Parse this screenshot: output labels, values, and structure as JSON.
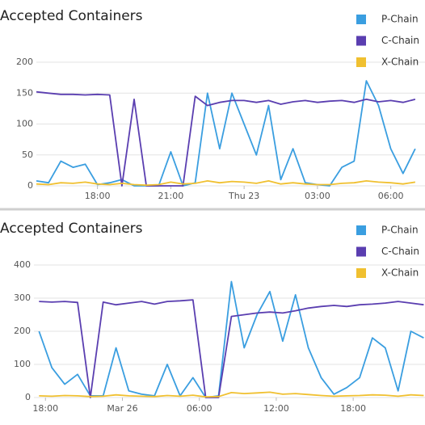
{
  "chart_data": [
    {
      "type": "line",
      "title": "Accepted Containers",
      "x": [
        15.5,
        16,
        16.5,
        17,
        17.5,
        18,
        18.5,
        19,
        19.5,
        20,
        20.5,
        21,
        21.5,
        22,
        22.5,
        23,
        23.5,
        24,
        24.5,
        25,
        25.5,
        26,
        26.5,
        27,
        27.5,
        28,
        28.5,
        29,
        29.5,
        30,
        30.5,
        31
      ],
      "series": [
        {
          "name": "P-Chain",
          "color": "#3a9ee0",
          "values": [
            8,
            5,
            40,
            30,
            35,
            2,
            5,
            10,
            0,
            0,
            0,
            55,
            0,
            5,
            150,
            60,
            150,
            100,
            50,
            130,
            10,
            60,
            5,
            2,
            0,
            30,
            40,
            170,
            130,
            60,
            20,
            60
          ]
        },
        {
          "name": "C-Chain",
          "color": "#5a3eb0",
          "values": [
            152,
            150,
            148,
            148,
            147,
            148,
            147,
            0,
            140,
            0,
            0,
            0,
            0,
            145,
            130,
            135,
            138,
            138,
            135,
            138,
            132,
            136,
            138,
            135,
            137,
            138,
            135,
            140,
            136,
            138,
            135,
            140
          ]
        },
        {
          "name": "X-Chain",
          "color": "#f0c030",
          "values": [
            3,
            2,
            5,
            4,
            6,
            3,
            2,
            4,
            2,
            1,
            2,
            6,
            3,
            4,
            8,
            5,
            7,
            6,
            4,
            8,
            3,
            5,
            3,
            2,
            2,
            4,
            5,
            8,
            6,
            5,
            3,
            6
          ]
        }
      ],
      "xlim": [
        15.5,
        31.4
      ],
      "xticks": [
        {
          "value": 18,
          "label": "18:00"
        },
        {
          "value": 21,
          "label": "21:00"
        },
        {
          "value": 24,
          "label": "Thu 23"
        },
        {
          "value": 27,
          "label": "03:00"
        },
        {
          "value": 30,
          "label": "06:00"
        }
      ],
      "ylim": [
        0,
        200
      ],
      "yticks": [
        0,
        50,
        100,
        150,
        200
      ],
      "grid": true
    },
    {
      "type": "line",
      "title": "Accepted Containers",
      "x": [
        17.5,
        18.5,
        19.5,
        20.5,
        21.5,
        22.5,
        23.5,
        24.5,
        25.5,
        26.5,
        27.5,
        28.5,
        29.5,
        30.5,
        31.5,
        32.5,
        33.5,
        34.5,
        35.5,
        36.5,
        37.5,
        38.5,
        39.5,
        40.5,
        41.5,
        42.5,
        43.5,
        44.5,
        45.5,
        46.5,
        47.5
      ],
      "series": [
        {
          "name": "P-Chain",
          "color": "#3a9ee0",
          "values": [
            200,
            90,
            40,
            70,
            5,
            5,
            150,
            20,
            10,
            5,
            100,
            5,
            60,
            0,
            5,
            350,
            150,
            250,
            320,
            170,
            310,
            150,
            60,
            10,
            30,
            60,
            180,
            150,
            20,
            200,
            180
          ]
        },
        {
          "name": "C-Chain",
          "color": "#5a3eb0",
          "values": [
            290,
            288,
            290,
            287,
            0,
            288,
            280,
            285,
            290,
            282,
            290,
            292,
            295,
            0,
            0,
            245,
            250,
            255,
            258,
            255,
            262,
            270,
            275,
            278,
            275,
            280,
            282,
            285,
            290,
            285,
            280
          ]
        },
        {
          "name": "X-Chain",
          "color": "#f0c030",
          "values": [
            5,
            4,
            6,
            5,
            3,
            4,
            8,
            5,
            4,
            3,
            6,
            4,
            7,
            2,
            3,
            15,
            12,
            14,
            16,
            10,
            12,
            9,
            6,
            4,
            5,
            6,
            8,
            7,
            4,
            8,
            6
          ]
        }
      ],
      "xlim": [
        17.1,
        47.6
      ],
      "xticks": [
        {
          "value": 18,
          "label": "18:00"
        },
        {
          "value": 24,
          "label": "Mar 26"
        },
        {
          "value": 30,
          "label": "06:00"
        },
        {
          "value": 36,
          "label": "12:00"
        },
        {
          "value": 42,
          "label": "18:00"
        }
      ],
      "ylim": [
        0,
        400
      ],
      "yticks": [
        0,
        100,
        200,
        300,
        400
      ],
      "grid": true
    }
  ]
}
